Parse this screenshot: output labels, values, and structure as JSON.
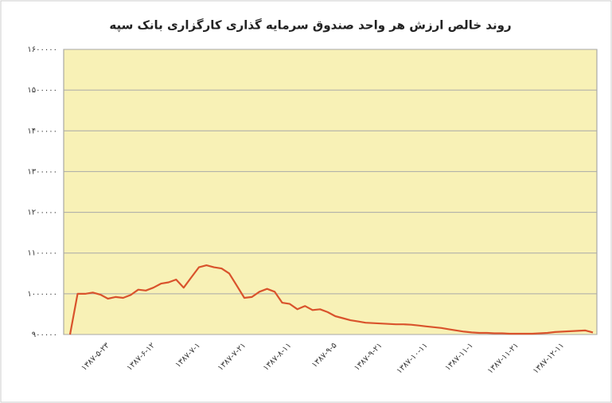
{
  "chart_data": {
    "type": "line",
    "title": "روند خالص ارزش هر واحد صندوق سرمایه گذاری کارگزاری بانک سپه",
    "categories": [
      null,
      null,
      null,
      null,
      null,
      "۱۳۸۷-۵-۲۳",
      null,
      null,
      null,
      null,
      null,
      "۱۳۸۷-۶-۱۲",
      null,
      null,
      null,
      null,
      null,
      "۱۳۸۷-۷-۱",
      null,
      null,
      null,
      null,
      null,
      "۱۳۸۷-۷-۲۱",
      null,
      null,
      null,
      null,
      null,
      "۱۳۸۷-۸-۱۱",
      null,
      null,
      null,
      null,
      null,
      "۱۳۸۷-۹-۵",
      null,
      null,
      null,
      null,
      null,
      "۱۳۸۷-۹-۲۱",
      null,
      null,
      null,
      null,
      null,
      "۱۳۸۷-۱۰-۱۱",
      null,
      null,
      null,
      null,
      null,
      "۱۳۸۷-۱۱-۱",
      null,
      null,
      null,
      null,
      null,
      "۱۳۸۷-۱۱-۲۱",
      null,
      null,
      null,
      null,
      null,
      "۱۳۸۷-۱۲-۱۱",
      null,
      null,
      null,
      null
    ],
    "series": [
      {
        "color": "#d9532c",
        "values": [
          900000,
          1000000,
          1000000,
          1003000,
          998000,
          988000,
          992000,
          990000,
          997000,
          1010000,
          1008000,
          1015000,
          1025000,
          1028000,
          1035000,
          1015000,
          1040000,
          1065000,
          1070000,
          1065000,
          1062000,
          1050000,
          1020000,
          990000,
          992000,
          1005000,
          1012000,
          1005000,
          978000,
          975000,
          962000,
          970000,
          960000,
          962000,
          955000,
          945000,
          940000,
          935000,
          932000,
          929000,
          928000,
          927000,
          926000,
          925000,
          925000,
          924000,
          922000,
          920000,
          918000,
          916000,
          913000,
          910000,
          907000,
          905000,
          904000,
          904000,
          903000,
          903000,
          902000,
          902000,
          902000,
          902000,
          903000,
          904000,
          906000,
          907000,
          908000,
          909000,
          910000,
          905000
        ]
      }
    ],
    "ylim": [
      900000,
      1600000
    ],
    "yticks": [
      {
        "value": 900000,
        "label": "۹۰۰۰۰۰"
      },
      {
        "value": 1000000,
        "label": "۱۰۰۰۰۰۰"
      },
      {
        "value": 1100000,
        "label": "۱۱۰۰۰۰۰"
      },
      {
        "value": 1200000,
        "label": "۱۲۰۰۰۰۰"
      },
      {
        "value": 1300000,
        "label": "۱۳۰۰۰۰۰"
      },
      {
        "value": 1400000,
        "label": "۱۴۰۰۰۰۰"
      },
      {
        "value": 1500000,
        "label": "۱۵۰۰۰۰۰"
      },
      {
        "value": 1600000,
        "label": "۱۶۰۰۰۰۰"
      }
    ],
    "grid": true,
    "background": "#f8f1b6"
  }
}
